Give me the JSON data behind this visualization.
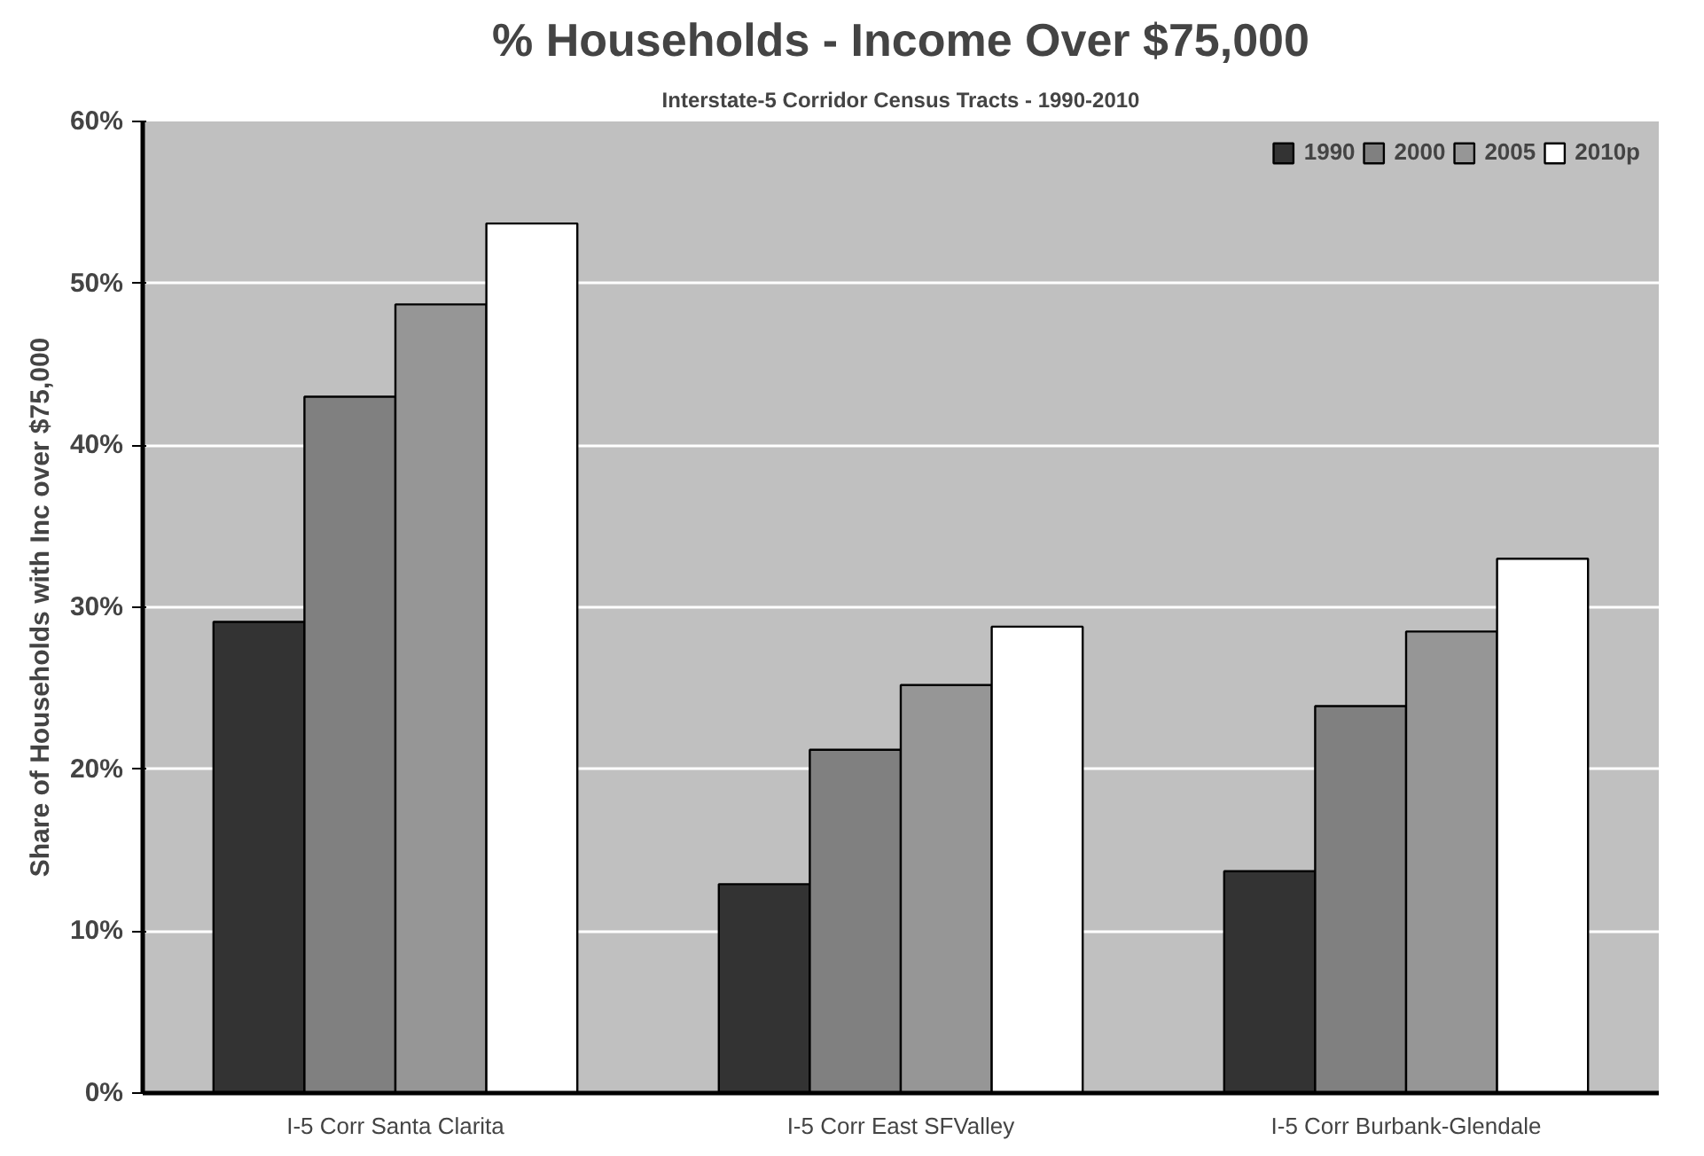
{
  "chart_data": {
    "type": "bar",
    "title": "% Households - Income Over $75,000",
    "subtitle": "Interstate-5 Corridor Census Tracts - 1990-2010",
    "ylabel": "Share of Households with Inc over $75,000",
    "categories": [
      "I-5 Corr Santa Clarita",
      "I-5 Corr East SFValley",
      "I-5 Corr Burbank-Glendale"
    ],
    "series": [
      {
        "name": "1990",
        "color": "#333333",
        "values": [
          29.1,
          12.9,
          13.7
        ]
      },
      {
        "name": "2000",
        "color": "#808080",
        "values": [
          43.0,
          21.2,
          23.9
        ]
      },
      {
        "name": "2005",
        "color": "#969696",
        "values": [
          48.7,
          25.2,
          28.5
        ]
      },
      {
        "name": "2010p",
        "color": "#ffffff",
        "values": [
          53.7,
          28.8,
          33.0
        ]
      }
    ],
    "ylim": [
      0,
      60
    ],
    "yticks": [
      {
        "value": 0,
        "label": "0%"
      },
      {
        "value": 10,
        "label": "10%"
      },
      {
        "value": 20,
        "label": "20%"
      },
      {
        "value": 30,
        "label": "30%"
      },
      {
        "value": 40,
        "label": "40%"
      },
      {
        "value": 50,
        "label": "50%"
      },
      {
        "value": 60,
        "label": "60%"
      }
    ],
    "grid": "y",
    "legend": "top right"
  }
}
